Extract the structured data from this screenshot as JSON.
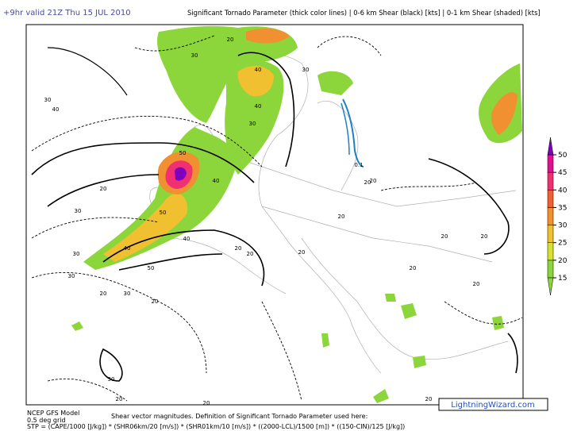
{
  "header": {
    "left": "+9hr valid 21Z Thu 15 JUL 2010",
    "right": "Significant Tornado Parameter (thick color lines) | 0-6 km Shear (black) [kts] | 0-1 km Shear (shaded) [kts]"
  },
  "footer": {
    "model": "NCEP GFS Model",
    "grid": "0.5 deg grid",
    "definition": "Shear vector magnitudes. Definition of Significant Tornado Parameter used here:",
    "formula": "STP = (CAPE/1000 [J/kg]) * (SHR06km/20 [m/s]) * (SHR01km/10 [m/s]) * ((2000-LCL)/1500 [m]) * ((150-CIN)/125 [J/kg])",
    "watermark": "LightningWizard.com"
  },
  "colorbar": {
    "ticks": [
      15,
      20,
      25,
      30,
      35,
      40,
      45,
      50
    ],
    "colors": [
      "#8cd63c",
      "#d8e030",
      "#f0c030",
      "#f09030",
      "#f06030",
      "#f03070",
      "#e01090"
    ],
    "top_color": "#8000c0"
  },
  "contour_labels": [
    30,
    30,
    20,
    40,
    40,
    30,
    30,
    20,
    40,
    50,
    40,
    20,
    50,
    40,
    30,
    20,
    30,
    20,
    40,
    50,
    30,
    20,
    20,
    20,
    20,
    20,
    20,
    30,
    20,
    20,
    0.1,
    20,
    20,
    30,
    20,
    20
  ]
}
